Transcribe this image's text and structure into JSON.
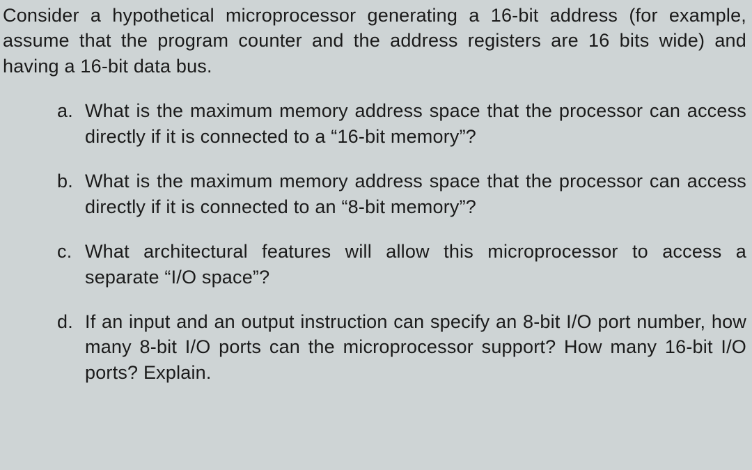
{
  "background_color": "#ced4d5",
  "text_color": "#1a1a1a",
  "font_family": "Verdana, Geneva, sans-serif",
  "intro_fontsize": 27,
  "item_fontsize": 27,
  "line_height": 1.35,
  "intro": "Consider a hypothetical microprocessor generating a 16-bit address (for example, assume that the program counter and the address registers are 16 bits wide) and having a 16-bit data bus.",
  "items": [
    {
      "marker": "a.",
      "text": "What is the maximum memory address space that the processor can access directly if it is connected to a “16-bit memory”?"
    },
    {
      "marker": "b.",
      "text": "What is the maximum memory address space that the processor can access directly if it is connected to an “8-bit memory”?"
    },
    {
      "marker": "c.",
      "text": "What architectural features will allow this microprocessor to access a separate “I/O space”?"
    },
    {
      "marker": "d.",
      "text": "If an input and an output instruction can specify an 8-bit I/O port number, how many 8-bit I/O ports can the microprocessor support? How many 16-bit I/O ports? Explain."
    }
  ]
}
